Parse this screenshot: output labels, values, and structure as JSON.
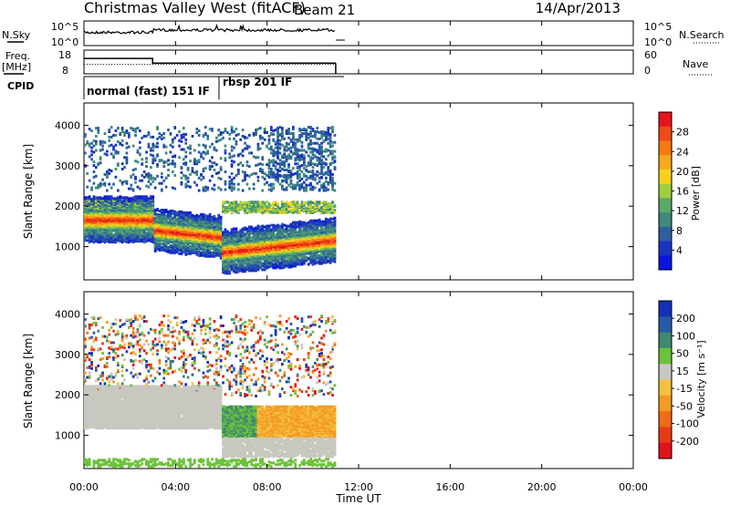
{
  "header": {
    "title": "Christmas Valley West (fitACF)",
    "beam": "Beam 21",
    "date": "14/Apr/2013"
  },
  "nsky_panel": {
    "left_label": "N.Sky",
    "right_label": "N.Search",
    "left_ticks": [
      "10^5",
      "10^0"
    ],
    "right_ticks": [
      "10^5",
      "10^0"
    ]
  },
  "freq_panel": {
    "left_label_1": "Freq.",
    "left_label_2": "[MHz]",
    "right_label": "Nave",
    "left_ticks": [
      "18",
      "8"
    ],
    "right_ticks": [
      "60",
      "0"
    ],
    "freq_steps": [
      [
        0,
        14.5
      ],
      [
        3,
        12.5
      ],
      [
        11,
        12.5
      ]
    ],
    "nave_level": 12.0
  },
  "cpid": {
    "label": "CPID",
    "segments": [
      {
        "label": "normal (fast) 151 IF",
        "start_hour": 0,
        "end_hour": 6
      },
      {
        "label": "rbsp 201 IF",
        "start_hour": 6,
        "end_hour": 11
      }
    ]
  },
  "chart_data": [
    {
      "type": "heatmap",
      "name": "power",
      "ylabel": "Slant Range [km]",
      "xlim": [
        0,
        24
      ],
      "ylim": [
        180,
        4550
      ],
      "y_ticks": [
        1000,
        2000,
        3000,
        4000
      ],
      "colorbar": {
        "label": "Power [dB]",
        "ticks": [
          "28",
          "24",
          "20",
          "16",
          "12",
          "8",
          "4"
        ],
        "colors": [
          "#e8141c",
          "#f04a18",
          "#f57a12",
          "#f9a81a",
          "#f6d21f",
          "#9fcf3c",
          "#5aa86a",
          "#3f8a7c",
          "#2d5fa0",
          "#1a34c0",
          "#0a14e0"
        ]
      },
      "data_end_hour": 11
    },
    {
      "type": "heatmap",
      "name": "velocity",
      "ylabel": "Slant Range [km]",
      "xlim": [
        0,
        24
      ],
      "ylim": [
        180,
        4550
      ],
      "y_ticks": [
        1000,
        2000,
        3000,
        4000
      ],
      "colorbar": {
        "label": "Velocity [m s⁻¹]",
        "ticks": [
          "200",
          "100",
          "50",
          "15",
          "-15",
          "-50",
          "-100",
          "-200"
        ],
        "colors": [
          "#1530b8",
          "#285aa8",
          "#3f8a6e",
          "#6cc23a",
          "#c8c8c0",
          "#f3c040",
          "#f59a24",
          "#f06b16",
          "#e83a18",
          "#e0121a"
        ]
      },
      "data_end_hour": 11
    }
  ],
  "x_axis": {
    "label": "Time UT",
    "ticks": [
      "00:00",
      "04:00",
      "08:00",
      "12:00",
      "16:00",
      "20:00",
      "00:00"
    ]
  }
}
